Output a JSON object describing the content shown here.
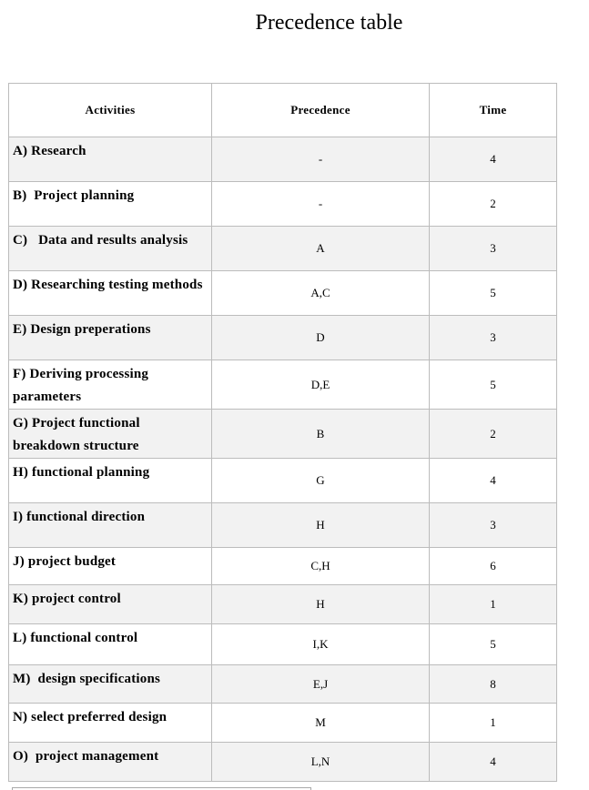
{
  "title": "Precedence table",
  "colors": {
    "table_border": "#bcbcbc",
    "row_stripe": "#f2f2f2",
    "text": "#000000"
  },
  "table": {
    "columns": [
      "Activities",
      "Precedence",
      "Time"
    ],
    "rows": [
      {
        "activity": "A) Research",
        "precedence": "-",
        "time": "4"
      },
      {
        "activity": "B)  Project planning",
        "precedence": "-",
        "time": "2"
      },
      {
        "activity": "C)   Data and results analysis",
        "precedence": "A",
        "time": "3"
      },
      {
        "activity": "D) Researching testing methods",
        "precedence": "A,C",
        "time": "5"
      },
      {
        "activity": "E) Design preperations",
        "precedence": "D",
        "time": "3"
      },
      {
        "activity": "F) Deriving processing parameters",
        "precedence": "D,E",
        "time": "5"
      },
      {
        "activity": "G) Project functional breakdown structure",
        "precedence": "B",
        "time": "2"
      },
      {
        "activity": "H) functional planning",
        "precedence": "G",
        "time": "4"
      },
      {
        "activity": "I) functional direction",
        "precedence": "H",
        "time": "3"
      },
      {
        "activity": "J) project budget",
        "precedence": "C,H",
        "time": "6"
      },
      {
        "activity": "K) project control",
        "precedence": "H",
        "time": "1"
      },
      {
        "activity": "L) functional control",
        "precedence": "I,K",
        "time": "5"
      },
      {
        "activity": "M)  design specifications",
        "precedence": "E,J",
        "time": "8"
      },
      {
        "activity": "N) select preferred design",
        "precedence": "M",
        "time": "1"
      },
      {
        "activity": "O)  project management",
        "precedence": "L,N",
        "time": "4"
      }
    ]
  }
}
